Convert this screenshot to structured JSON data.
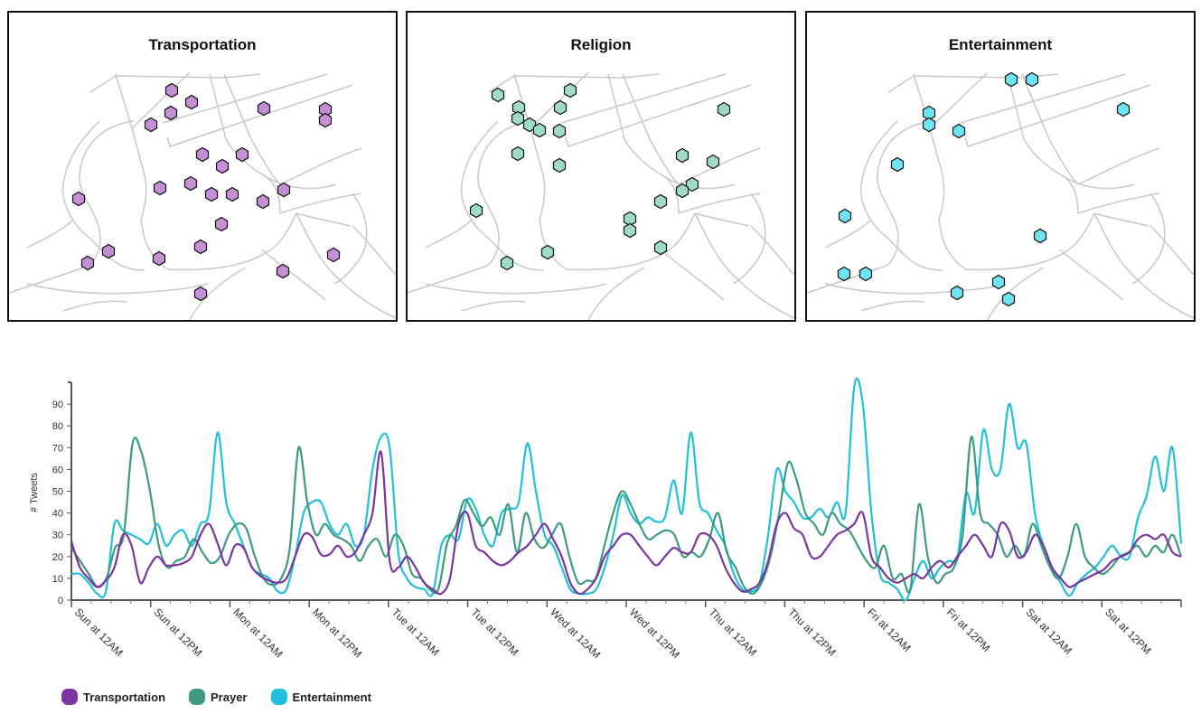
{
  "maps": [
    {
      "title": "Transportation",
      "color": "#c58fd6",
      "points": [
        [
          190,
          100
        ],
        [
          167,
          138
        ],
        [
          189,
          125
        ],
        [
          212,
          113
        ],
        [
          292,
          120
        ],
        [
          360,
          121
        ],
        [
          360,
          133
        ],
        [
          224,
          171
        ],
        [
          246,
          184
        ],
        [
          268,
          171
        ],
        [
          87,
          220
        ],
        [
          177,
          208
        ],
        [
          211,
          203
        ],
        [
          234,
          215
        ],
        [
          257,
          215
        ],
        [
          291,
          223
        ],
        [
          314,
          210
        ],
        [
          245,
          248
        ],
        [
          222,
          273
        ],
        [
          120,
          278
        ],
        [
          97,
          291
        ],
        [
          176,
          286
        ],
        [
          313,
          300
        ],
        [
          369,
          282
        ],
        [
          222,
          325
        ]
      ]
    },
    {
      "title": "Religion",
      "color": "#9fdcc6",
      "points": [
        [
          551,
          105
        ],
        [
          631,
          100
        ],
        [
          574,
          119
        ],
        [
          620,
          119
        ],
        [
          573,
          131
        ],
        [
          586,
          138
        ],
        [
          597,
          144
        ],
        [
          619,
          145
        ],
        [
          801,
          121
        ],
        [
          573,
          170
        ],
        [
          619,
          183
        ],
        [
          755,
          172
        ],
        [
          789,
          179
        ],
        [
          766,
          204
        ],
        [
          755,
          211
        ],
        [
          731,
          223
        ],
        [
          527,
          233
        ],
        [
          697,
          242
        ],
        [
          697,
          255
        ],
        [
          606,
          279
        ],
        [
          731,
          274
        ],
        [
          561,
          291
        ]
      ]
    },
    {
      "title": "Entertainment",
      "color": "#6fe4f4",
      "points": [
        [
          1119,
          88
        ],
        [
          1142,
          88
        ],
        [
          1243,
          121
        ],
        [
          1028,
          125
        ],
        [
          1028,
          138
        ],
        [
          1061,
          145
        ],
        [
          993,
          182
        ],
        [
          935,
          239
        ],
        [
          1151,
          261
        ],
        [
          934,
          303
        ],
        [
          958,
          303
        ],
        [
          1059,
          324
        ],
        [
          1105,
          312
        ],
        [
          1116,
          331
        ]
      ]
    }
  ],
  "chart_data": {
    "type": "line",
    "ylabel": "# Tweets",
    "ylim": [
      0,
      100
    ],
    "yticks": [
      0,
      10,
      20,
      30,
      40,
      50,
      60,
      70,
      80,
      90
    ],
    "x_range_hours": [
      0,
      168
    ],
    "xtick_labels": [
      "Sun at 12AM",
      "Sun at 12PM",
      "Mon at 12AM",
      "Mon at 12PM",
      "Tue at 12AM",
      "Tue at 12PM",
      "Wed at 12AM",
      "Wed at 12PM",
      "Thu at 12AM",
      "Thu at 12PM",
      "Fri at 12AM",
      "Fri at 12PM",
      "Sat at 12AM",
      "Sat at 12PM"
    ],
    "series": [
      {
        "name": "Transportation",
        "color": "#7b35a0",
        "values": [
          27,
          15,
          10,
          6,
          9,
          15,
          30,
          25,
          8,
          15,
          20,
          16,
          16,
          17,
          20,
          30,
          35,
          26,
          16,
          25,
          24,
          15,
          11,
          9,
          8,
          10,
          20,
          30,
          29,
          21,
          21,
          25,
          20,
          22,
          30,
          40,
          68,
          18,
          15,
          20,
          15,
          8,
          5,
          3,
          10,
          35,
          40,
          25,
          22,
          18,
          16,
          18,
          22,
          25,
          30,
          35,
          28,
          20,
          8,
          3,
          5,
          10,
          20,
          25,
          30,
          30,
          25,
          20,
          16,
          20,
          24,
          22,
          22,
          30,
          30,
          25,
          15,
          8,
          4,
          5,
          8,
          18,
          35,
          40,
          33,
          30,
          20,
          20,
          25,
          30,
          32,
          35,
          40,
          20,
          15,
          10,
          8,
          10,
          12,
          10,
          15,
          18,
          15,
          20,
          25,
          30,
          25,
          20,
          35,
          32,
          20,
          22,
          30,
          25,
          15,
          10,
          6,
          8,
          10,
          12,
          14,
          18,
          20,
          22,
          28,
          30,
          28,
          30,
          22,
          20
        ]
      },
      {
        "name": "Prayer",
        "color": "#3e9a80",
        "values": [
          24,
          18,
          12,
          6,
          10,
          24,
          30,
          72,
          68,
          50,
          25,
          15,
          18,
          20,
          28,
          22,
          17,
          20,
          30,
          35,
          33,
          20,
          10,
          7,
          10,
          24,
          70,
          45,
          30,
          35,
          30,
          28,
          25,
          18,
          25,
          28,
          20,
          30,
          25,
          12,
          10,
          5,
          5,
          26,
          34,
          46,
          40,
          34,
          38,
          30,
          44,
          22,
          40,
          28,
          24,
          30,
          35,
          20,
          8,
          9,
          10,
          25,
          40,
          50,
          44,
          35,
          28,
          30,
          32,
          30,
          20,
          22,
          20,
          28,
          40,
          22,
          15,
          6,
          3,
          8,
          20,
          40,
          63,
          55,
          40,
          35,
          30,
          40,
          35,
          32,
          25,
          18,
          15,
          25,
          10,
          12,
          5,
          44,
          20,
          8,
          12,
          15,
          30,
          75,
          40,
          35,
          30,
          20,
          25,
          20,
          35,
          25,
          15,
          10,
          20,
          35,
          20,
          15,
          12,
          15,
          20,
          22,
          25,
          20,
          25,
          22,
          30,
          20
        ]
      },
      {
        "name": "Entertainment",
        "color": "#1ec0dc",
        "values": [
          12,
          12,
          8,
          3,
          4,
          35,
          32,
          30,
          28,
          26,
          35,
          25,
          30,
          32,
          25,
          35,
          40,
          77,
          45,
          35,
          25,
          15,
          12,
          10,
          4,
          5,
          20,
          40,
          45,
          45,
          35,
          30,
          35,
          25,
          30,
          60,
          75,
          70,
          22,
          10,
          6,
          5,
          3,
          25,
          30,
          28,
          46,
          42,
          30,
          25,
          40,
          42,
          45,
          72,
          50,
          30,
          25,
          15,
          5,
          3,
          3,
          5,
          15,
          30,
          48,
          40,
          35,
          38,
          36,
          38,
          55,
          40,
          77,
          45,
          40,
          32,
          25,
          12,
          5,
          4,
          8,
          30,
          60,
          50,
          45,
          38,
          38,
          42,
          38,
          45,
          40,
          98,
          90,
          40,
          12,
          8,
          5,
          0,
          10,
          18,
          10,
          15,
          18,
          20,
          49,
          40,
          78,
          60,
          60,
          90,
          70,
          72,
          40,
          25,
          15,
          8,
          2,
          8,
          12,
          15,
          20,
          25,
          20,
          20,
          38,
          48,
          66,
          50,
          70,
          26
        ]
      }
    ]
  }
}
